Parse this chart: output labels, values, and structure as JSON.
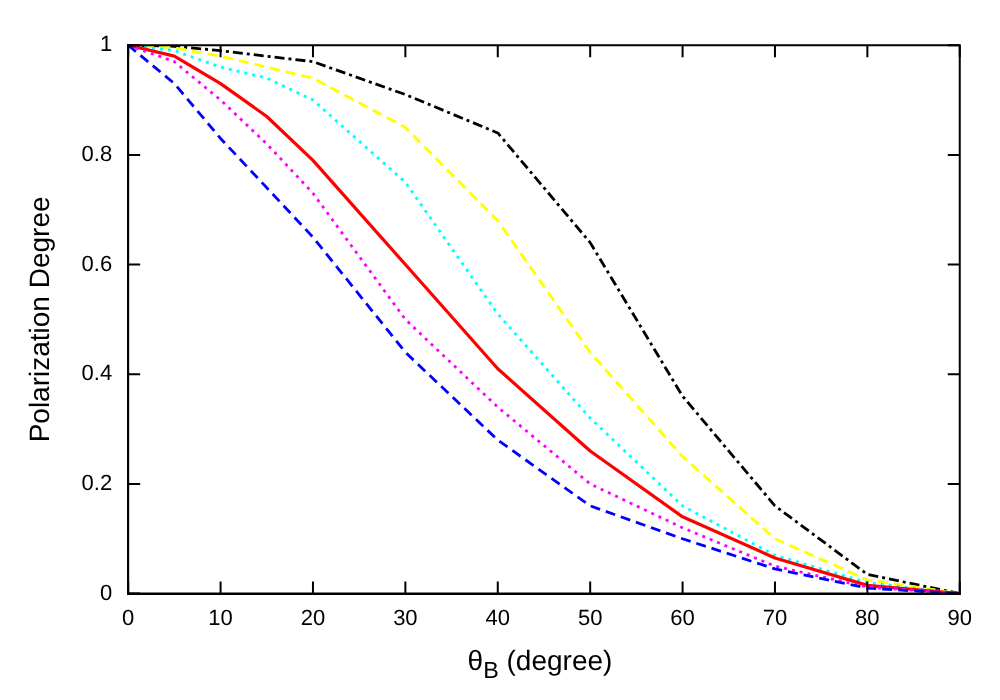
{
  "chart_data": {
    "type": "line",
    "xlabel": "θ$_{B}$ (degree)",
    "ylabel": "Polarization Degree",
    "x": [
      0,
      5,
      10,
      15,
      20,
      30,
      40,
      50,
      60,
      70,
      80,
      90
    ],
    "xlim": [
      0,
      90
    ],
    "xticks": [
      0,
      10,
      20,
      30,
      40,
      50,
      60,
      70,
      80,
      90
    ],
    "ylim": [
      0,
      1
    ],
    "yticks": [
      0,
      0.2,
      0.4,
      0.6,
      0.8,
      1
    ],
    "grid": false,
    "legend": false,
    "marker": "none",
    "series": [
      {
        "color": "#0000ff",
        "line_style": "dashed",
        "values": [
          1,
          0.93,
          0.83,
          0.74,
          0.65,
          0.44,
          0.28,
          0.16,
          0.1,
          0.045,
          0.01,
          0
        ]
      },
      {
        "color": "#ff00ff",
        "line_style": "dotted",
        "values": [
          1,
          0.97,
          0.9,
          0.82,
          0.73,
          0.5,
          0.34,
          0.2,
          0.12,
          0.05,
          0.012,
          0
        ]
      },
      {
        "color": "#ff0000",
        "line_style": "solid",
        "values": [
          1,
          0.98,
          0.93,
          0.87,
          0.79,
          0.6,
          0.41,
          0.26,
          0.14,
          0.065,
          0.015,
          0
        ]
      },
      {
        "color": "#00ffff",
        "line_style": "dotted",
        "values": [
          1,
          0.99,
          0.96,
          0.94,
          0.9,
          0.75,
          0.51,
          0.32,
          0.16,
          0.07,
          0.02,
          0
        ]
      },
      {
        "color": "#ffff00",
        "line_style": "dashed",
        "values": [
          1,
          0.995,
          0.98,
          0.96,
          0.94,
          0.85,
          0.68,
          0.44,
          0.25,
          0.1,
          0.025,
          0
        ]
      },
      {
        "color": "#000000",
        "line_style": "dashdot",
        "values": [
          1,
          0.998,
          0.99,
          0.98,
          0.97,
          0.91,
          0.84,
          0.64,
          0.36,
          0.16,
          0.035,
          0
        ]
      }
    ]
  }
}
